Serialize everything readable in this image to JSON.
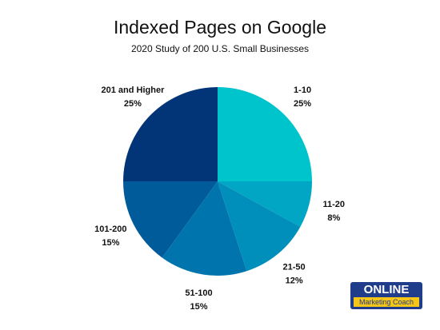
{
  "chart_data": {
    "type": "pie",
    "title": "Indexed Pages on Google",
    "subtitle": "2020 Study of 200 U.S. Small Businesses",
    "categories": [
      "1-10",
      "11-20",
      "21-50",
      "51-100",
      "101-200",
      "201 and Higher"
    ],
    "values": [
      25,
      8,
      12,
      15,
      15,
      25
    ],
    "value_labels": [
      "25%",
      "8%",
      "12%",
      "15%",
      "15%",
      "25%"
    ],
    "colors": [
      "#00c4cc",
      "#00a6c4",
      "#008fbb",
      "#0075ad",
      "#005b9b",
      "#023577"
    ]
  },
  "logo": {
    "name": "ONLINE",
    "tagline": "Marketing Coach"
  }
}
